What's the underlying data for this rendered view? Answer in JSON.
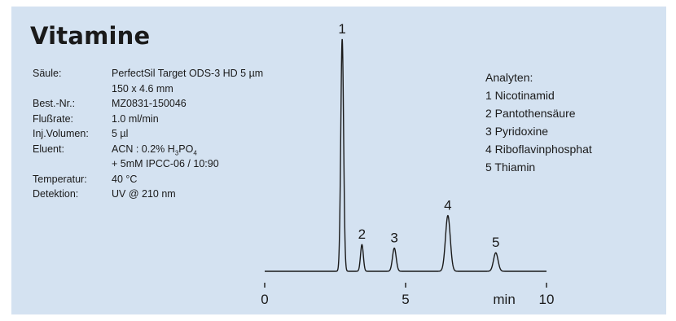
{
  "title": "Vitamine",
  "parameters": [
    {
      "label": "Säule:",
      "value": "PerfectSil Target ODS-3 HD 5 µm"
    },
    {
      "label": "",
      "value": "150 x 4.6 mm"
    },
    {
      "label": "Best.-Nr.:",
      "value": "MZ0831-150046"
    },
    {
      "label": "Flußrate:",
      "value": "1.0 ml/min"
    },
    {
      "label": "Inj.Volumen:",
      "value": "5 µl"
    },
    {
      "label": "Eluent:",
      "value": "ACN : 0.2% H",
      "sub1": "3",
      "mid": "PO",
      "sub2": "4"
    },
    {
      "label": "",
      "value": "+ 5mM IPCC-06 / 10:90"
    },
    {
      "label": "Temperatur:",
      "value": "40 °C"
    },
    {
      "label": "Detektion:",
      "value": "UV @ 210 nm"
    }
  ],
  "analytes": {
    "heading": "Analyten:",
    "items": [
      "1 Nicotinamid",
      "2 Pantothensäure",
      "3 Pyridoxine",
      "4 Riboflavinphosphat",
      "5 Thiamin"
    ]
  },
  "colors": {
    "background": "#d4e2f1",
    "trace": "#1a1a1a",
    "text": "#1a1a1a"
  },
  "chart_data": {
    "type": "line",
    "xlabel": "min",
    "xlim": [
      0,
      10
    ],
    "xticks": [
      0,
      5,
      10
    ],
    "baseline": 0,
    "ylim": [
      0,
      100
    ],
    "peaks": [
      {
        "label": "1",
        "time": 2.75,
        "height": 100,
        "width": 0.05
      },
      {
        "label": "2",
        "time": 3.45,
        "height": 11.5,
        "width": 0.05
      },
      {
        "label": "3",
        "time": 4.6,
        "height": 10,
        "width": 0.065
      },
      {
        "label": "4",
        "time": 6.5,
        "height": 24,
        "width": 0.085
      },
      {
        "label": "5",
        "time": 8.2,
        "height": 8,
        "width": 0.08
      }
    ]
  }
}
